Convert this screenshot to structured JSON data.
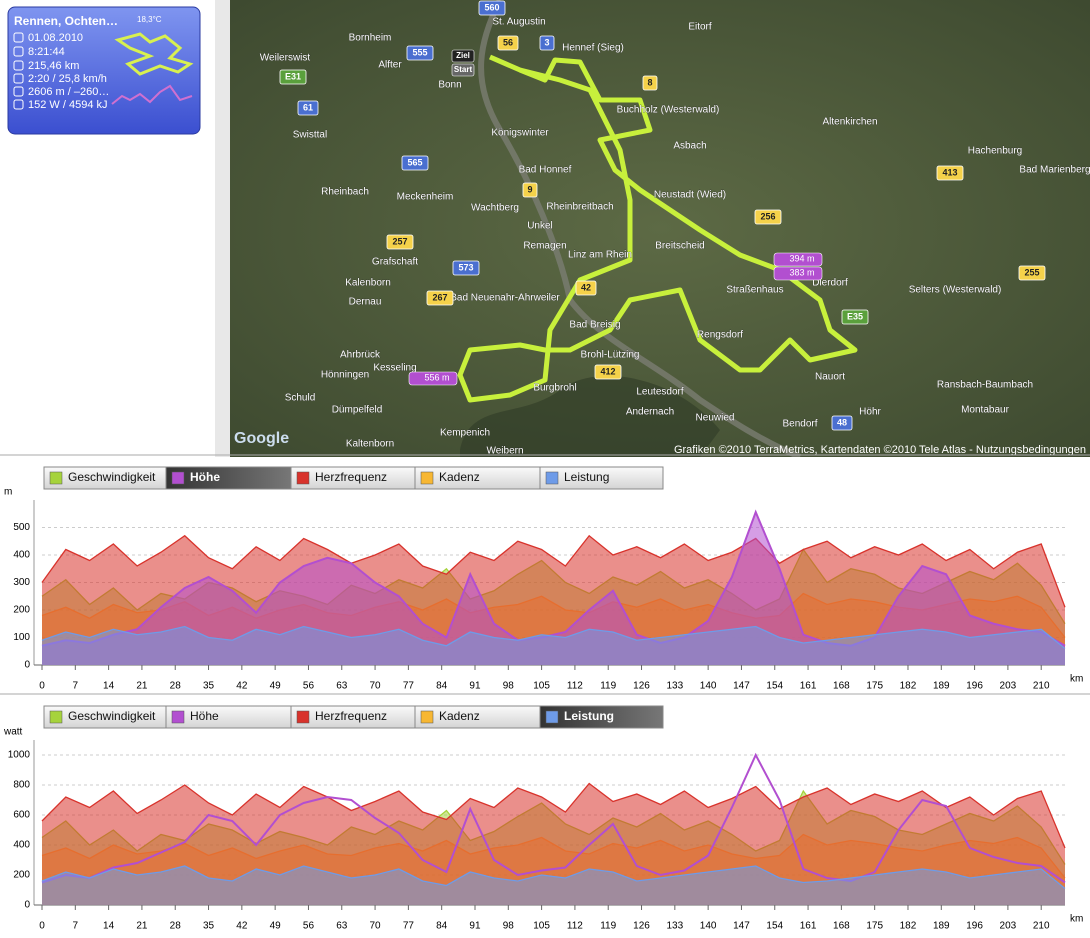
{
  "sidebar": {
    "title": "Rennen, Ochten…",
    "temperature": "18,3°C",
    "date": "01.08.2010",
    "duration": "8:21:44",
    "distance": "215,46 km",
    "pace": "2:20 / 25,8 km/h",
    "elevation": "2606 m / –260…",
    "energy": "152 W / 4594 kJ"
  },
  "map": {
    "places": [
      "St. Augustin",
      "Hennef (Sieg)",
      "Bornheim",
      "Alfter",
      "Bonn",
      "Weilerswist",
      "Königswinter",
      "Bad Honnef",
      "Swisttal",
      "Rheinbach",
      "Meckenheim",
      "Wachtberg",
      "Rheinbreitbach",
      "Unkel",
      "Remagen",
      "Linz am Rhein",
      "Asbach",
      "Buchholz (Westerwald)",
      "Neustadt (Wied)",
      "Eitorf",
      "Altenkirchen",
      "Hachenburg",
      "Bad Marienberg",
      "Dierdorf",
      "Selters (Westerwald)",
      "Straßenhaus",
      "Rengsdorf",
      "Neuwied",
      "Andernach",
      "Bendorf",
      "Montabaur",
      "Ransbach-Baumbach",
      "Höhr",
      "Nauort",
      "Bad Breisig",
      "Brohl-Lützing",
      "Burgbrohl",
      "Bad Neuenahr-Ahrweiler",
      "Grafschaft",
      "Kalenborn",
      "Dernau",
      "Ahrbrück",
      "Hönningen",
      "Schuld",
      "Dümpelfeld",
      "Kesseling",
      "Kempenich",
      "Weibern",
      "Leutesdorf",
      "Kaltenborn",
      "Breitscheid"
    ],
    "roads": [
      {
        "label": "555",
        "color": "#4a6fd0"
      },
      {
        "label": "560",
        "color": "#4a6fd0"
      },
      {
        "label": "56",
        "color": "#f5d24a"
      },
      {
        "label": "3",
        "color": "#4a6fd0"
      },
      {
        "label": "8",
        "color": "#f5d24a"
      },
      {
        "label": "E31",
        "color": "#5aa03c"
      },
      {
        "label": "61",
        "color": "#4a6fd0"
      },
      {
        "label": "565",
        "color": "#4a6fd0"
      },
      {
        "label": "9",
        "color": "#f5d24a"
      },
      {
        "label": "257",
        "color": "#f5d24a"
      },
      {
        "label": "573",
        "color": "#4a6fd0"
      },
      {
        "label": "267",
        "color": "#f5d24a"
      },
      {
        "label": "42",
        "color": "#f5d24a"
      },
      {
        "label": "412",
        "color": "#f5d24a"
      },
      {
        "label": "256",
        "color": "#f5d24a"
      },
      {
        "label": "E35",
        "color": "#5aa03c"
      },
      {
        "label": "48",
        "color": "#4a6fd0"
      },
      {
        "label": "413",
        "color": "#f5d24a"
      },
      {
        "label": "255",
        "color": "#f5d24a"
      }
    ],
    "markers": [
      "Ziel",
      "Start"
    ],
    "altitude_tags": [
      "394 m",
      "383 m",
      "556 m"
    ],
    "logo": "Google",
    "copyright": "Grafiken ©2010 TerraMetrics, Kartendaten ©2010 Tele Atlas - Nutzungsbedingungen"
  },
  "chart_data": [
    {
      "type": "area",
      "y_label": "m",
      "x_label": "km",
      "active_series": 1,
      "grid": true,
      "x": [
        0,
        5,
        10,
        15,
        20,
        25,
        30,
        35,
        40,
        45,
        50,
        55,
        60,
        65,
        70,
        75,
        80,
        85,
        90,
        95,
        100,
        105,
        110,
        115,
        120,
        125,
        130,
        135,
        140,
        145,
        150,
        155,
        160,
        165,
        170,
        175,
        180,
        185,
        190,
        195,
        200,
        205,
        210,
        215
      ],
      "xlim": [
        0,
        215
      ],
      "xticks": [
        0,
        7,
        14,
        21,
        28,
        35,
        42,
        49,
        56,
        63,
        70,
        77,
        84,
        91,
        98,
        105,
        112,
        119,
        126,
        133,
        140,
        147,
        154,
        161,
        168,
        175,
        182,
        189,
        196,
        203,
        210
      ],
      "ylim": [
        0,
        600
      ],
      "yticks": [
        0,
        100,
        200,
        300,
        400,
        500
      ],
      "series": [
        {
          "name": "Geschwindigkeit",
          "color": "#a6d33c",
          "style": "area",
          "values": [
            250,
            310,
            220,
            280,
            200,
            260,
            240,
            300,
            280,
            230,
            270,
            250,
            220,
            290,
            260,
            310,
            280,
            350,
            240,
            270,
            330,
            380,
            300,
            260,
            320,
            290,
            340,
            280,
            310,
            260,
            200,
            240,
            420,
            300,
            350,
            330,
            280,
            260,
            300,
            340,
            310,
            370,
            290,
            150
          ]
        },
        {
          "name": "Höhe",
          "color": "#b24fd0",
          "style": "area",
          "values": [
            70,
            90,
            80,
            110,
            130,
            210,
            280,
            320,
            270,
            190,
            300,
            360,
            390,
            370,
            300,
            250,
            150,
            100,
            330,
            150,
            90,
            100,
            120,
            200,
            270,
            110,
            80,
            100,
            160,
            320,
            556,
            350,
            110,
            80,
            70,
            100,
            250,
            360,
            330,
            180,
            150,
            130,
            120,
            70
          ]
        },
        {
          "name": "Herzfrequenz",
          "color": "#d8332c",
          "style": "area",
          "values": [
            300,
            420,
            380,
            440,
            360,
            410,
            470,
            390,
            350,
            430,
            380,
            460,
            420,
            370,
            400,
            440,
            360,
            330,
            410,
            380,
            450,
            420,
            360,
            470,
            400,
            430,
            390,
            440,
            380,
            410,
            460,
            370,
            420,
            450,
            390,
            430,
            400,
            440,
            380,
            420,
            350,
            410,
            440,
            210
          ]
        },
        {
          "name": "Kadenz",
          "color": "#f7b733",
          "style": "area",
          "values": [
            180,
            210,
            170,
            220,
            190,
            200,
            230,
            180,
            210,
            170,
            200,
            220,
            190,
            180,
            210,
            230,
            200,
            240,
            190,
            210,
            220,
            250,
            200,
            190,
            230,
            210,
            240,
            200,
            220,
            190,
            170,
            180,
            260,
            220,
            240,
            230,
            210,
            200,
            220,
            240,
            230,
            250,
            210,
            100
          ]
        },
        {
          "name": "Leistung",
          "color": "#6e9be8",
          "style": "area",
          "values": [
            90,
            120,
            100,
            130,
            110,
            120,
            140,
            100,
            90,
            130,
            110,
            140,
            120,
            100,
            110,
            130,
            90,
            70,
            120,
            100,
            90,
            110,
            100,
            130,
            120,
            90,
            100,
            110,
            120,
            130,
            140,
            100,
            80,
            90,
            100,
            110,
            120,
            130,
            120,
            100,
            110,
            120,
            130,
            60
          ]
        }
      ]
    },
    {
      "type": "area",
      "y_label": "watt",
      "x_label": "km",
      "active_series": 4,
      "grid": true,
      "x": [
        0,
        5,
        10,
        15,
        20,
        25,
        30,
        35,
        40,
        45,
        50,
        55,
        60,
        65,
        70,
        75,
        80,
        85,
        90,
        95,
        100,
        105,
        110,
        115,
        120,
        125,
        130,
        135,
        140,
        145,
        150,
        155,
        160,
        165,
        170,
        175,
        180,
        185,
        190,
        195,
        200,
        205,
        210,
        215
      ],
      "xlim": [
        0,
        215
      ],
      "xticks": [
        0,
        7,
        14,
        21,
        28,
        35,
        42,
        49,
        56,
        63,
        70,
        77,
        84,
        91,
        98,
        105,
        112,
        119,
        126,
        133,
        140,
        147,
        154,
        161,
        168,
        175,
        182,
        189,
        196,
        203,
        210
      ],
      "ylim": [
        0,
        1100
      ],
      "yticks": [
        0,
        200,
        400,
        600,
        800,
        1000
      ],
      "series": [
        {
          "name": "Geschwindigkeit",
          "color": "#a6d33c",
          "style": "area",
          "values": [
            450,
            560,
            400,
            500,
            360,
            470,
            430,
            540,
            500,
            410,
            490,
            450,
            400,
            520,
            470,
            560,
            500,
            630,
            430,
            490,
            590,
            680,
            540,
            470,
            580,
            520,
            610,
            500,
            560,
            470,
            360,
            430,
            760,
            540,
            630,
            590,
            500,
            470,
            540,
            610,
            560,
            660,
            520,
            270
          ]
        },
        {
          "name": "Höhe",
          "color": "#b24fd0",
          "style": "line",
          "values": [
            150,
            200,
            180,
            250,
            280,
            350,
            420,
            600,
            560,
            400,
            600,
            680,
            720,
            700,
            580,
            480,
            300,
            220,
            640,
            300,
            200,
            230,
            250,
            400,
            540,
            260,
            200,
            230,
            330,
            650,
            1000,
            700,
            240,
            180,
            160,
            220,
            500,
            700,
            660,
            380,
            320,
            280,
            260,
            150
          ]
        },
        {
          "name": "Herzfrequenz",
          "color": "#d8332c",
          "style": "area",
          "values": [
            560,
            720,
            650,
            760,
            610,
            700,
            800,
            680,
            600,
            740,
            650,
            790,
            720,
            630,
            690,
            760,
            620,
            570,
            710,
            650,
            780,
            720,
            620,
            810,
            690,
            740,
            670,
            760,
            650,
            710,
            790,
            640,
            720,
            780,
            670,
            740,
            690,
            760,
            650,
            720,
            600,
            710,
            760,
            380
          ]
        },
        {
          "name": "Kadenz",
          "color": "#f7b733",
          "style": "area",
          "values": [
            330,
            380,
            310,
            400,
            340,
            360,
            410,
            330,
            380,
            310,
            360,
            400,
            340,
            330,
            380,
            410,
            360,
            430,
            340,
            380,
            400,
            450,
            360,
            340,
            410,
            380,
            430,
            360,
            400,
            340,
            310,
            330,
            470,
            400,
            430,
            410,
            380,
            360,
            400,
            430,
            410,
            450,
            380,
            180
          ]
        },
        {
          "name": "Leistung",
          "color": "#6e9be8",
          "style": "area",
          "values": [
            160,
            220,
            180,
            240,
            200,
            220,
            260,
            180,
            160,
            240,
            200,
            260,
            220,
            180,
            200,
            240,
            160,
            130,
            220,
            180,
            160,
            200,
            180,
            240,
            220,
            160,
            180,
            200,
            220,
            240,
            260,
            180,
            150,
            160,
            180,
            200,
            220,
            240,
            220,
            180,
            200,
            220,
            240,
            110
          ]
        }
      ]
    }
  ]
}
